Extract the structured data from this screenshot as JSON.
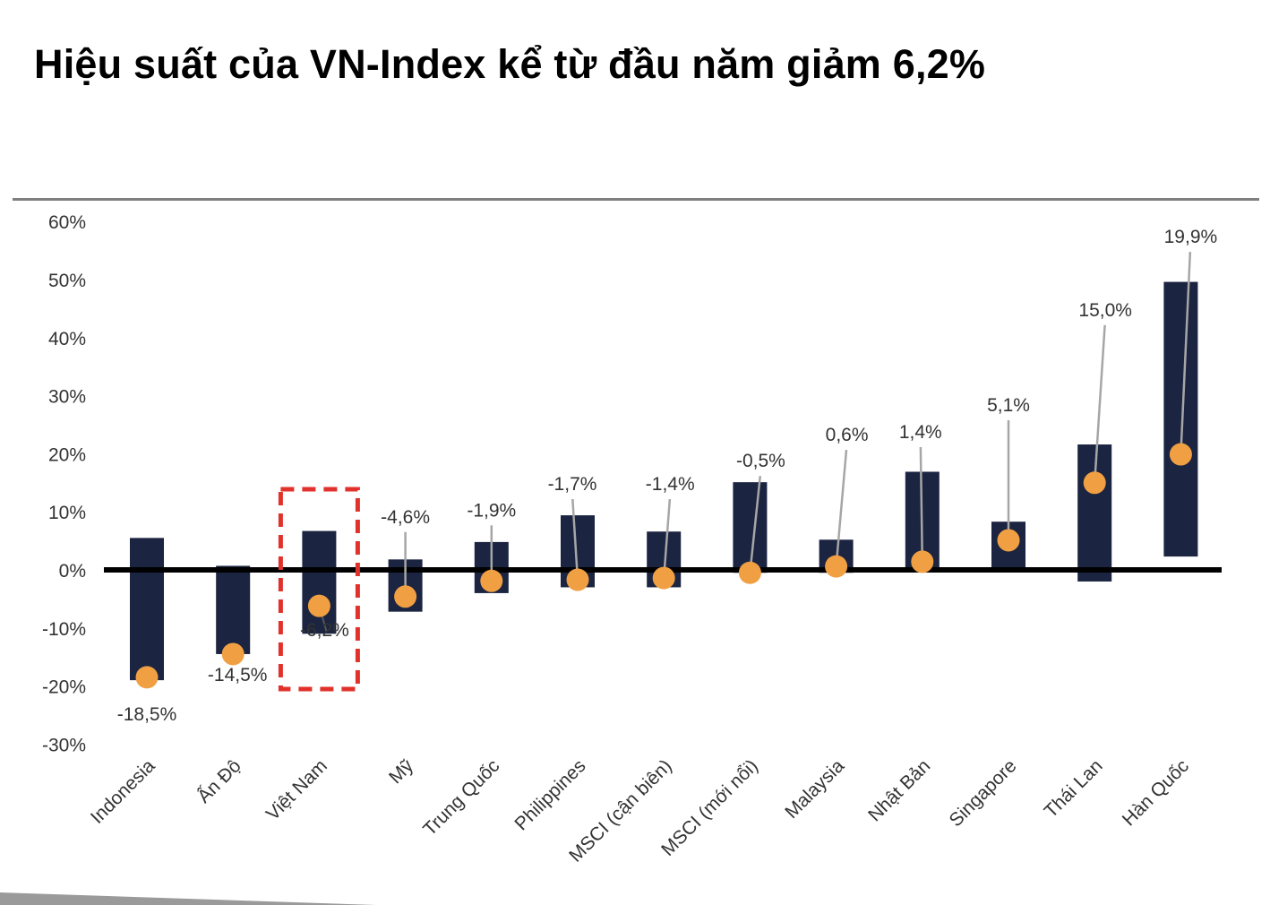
{
  "title": "Hiệu suất của VN-Index kể từ đầu năm giảm 6,2%",
  "colors": {
    "bar": "#1b2440",
    "marker": "#f0a043",
    "leader": "#a6a6a6",
    "highlight": "#e0312b",
    "zero_line": "#000000"
  },
  "chart_data": {
    "type": "bar",
    "subtype": "floating-range-with-point-marker",
    "title": "",
    "xlabel": "",
    "ylabel": "",
    "ylim": [
      -30,
      60
    ],
    "yticks": [
      "60%",
      "50%",
      "40%",
      "30%",
      "20%",
      "10%",
      "0%",
      "-10%",
      "-20%",
      "-30%"
    ],
    "grid": false,
    "legend": "none",
    "highlighted_category": "Việt Nam",
    "categories": [
      "Indonesia",
      "Ấn Độ",
      "Việt Nam",
      "Mỹ",
      "Trung Quốc",
      "Philippines",
      "MSCI (cận biên)",
      "MSCI (mới nổi)",
      "Malaysia",
      "Nhật Bản",
      "Singapore",
      "Thái Lan",
      "Hàn Quốc"
    ],
    "series": [
      {
        "values": [
          -18.5,
          -14.5,
          -6.2,
          -4.6,
          -1.9,
          -1.7,
          -1.4,
          -0.5,
          0.6,
          1.4,
          5.1,
          15.0,
          19.9
        ],
        "labels": [
          "-18,5%",
          "-14,5%",
          "-6,2%",
          "-4,6%",
          "-1,9%",
          "-1,7%",
          "-1,4%",
          "-0,5%",
          "0,6%",
          "1,4%",
          "5,1%",
          "15,0%",
          "19,9%"
        ]
      },
      {
        "low": [
          -19,
          -14.5,
          -11,
          -7.2,
          -4,
          -3,
          -3,
          -0.5,
          -0.5,
          0,
          0,
          -2,
          2.3
        ],
        "high": [
          5.5,
          0.7,
          6.7,
          1.8,
          4.8,
          9.4,
          6.6,
          15.1,
          5.2,
          16.9,
          8.3,
          21.6,
          49.6
        ]
      }
    ]
  }
}
